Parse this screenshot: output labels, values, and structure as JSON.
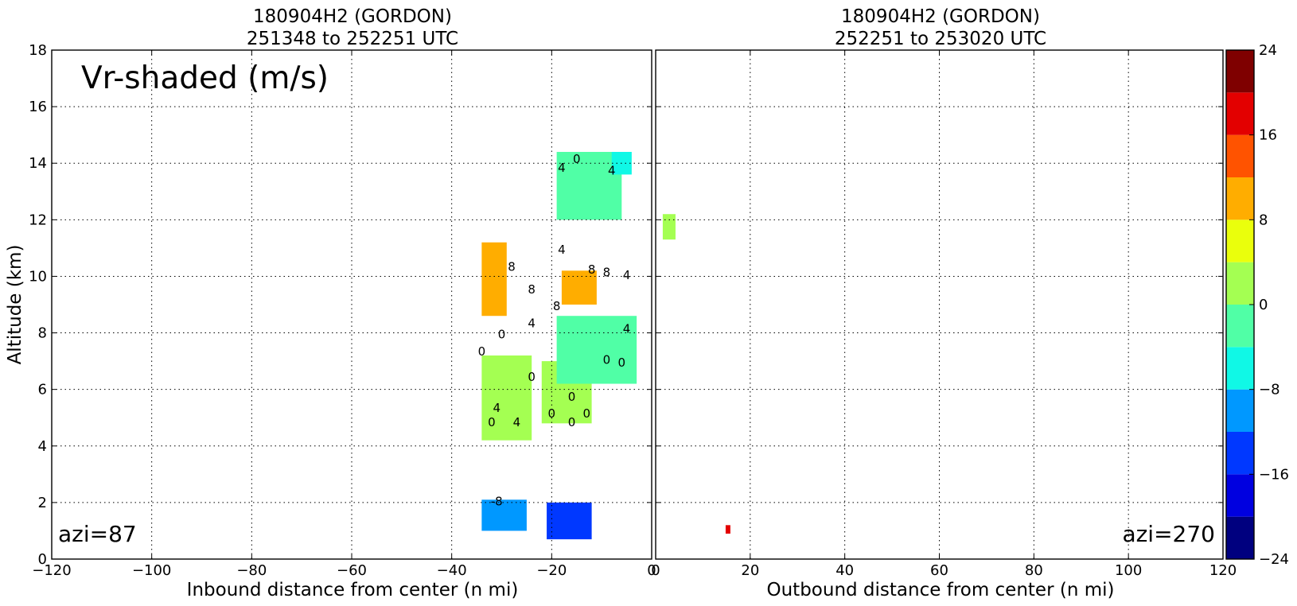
{
  "chart_data": {
    "type": "heatmap",
    "annotation": "Vr-shaded (m/s)",
    "ylabel": "Altitude (km)",
    "ylim": [
      0,
      18
    ],
    "y_ticks": [
      0,
      2,
      4,
      6,
      8,
      10,
      12,
      14,
      16,
      18
    ],
    "grid": true,
    "panels": [
      {
        "title_line1": "180904H2 (GORDON)",
        "title_line2": "251348 to 252251 UTC",
        "xlabel": "Inbound distance from center (n mi)",
        "xlim": [
          -120,
          0
        ],
        "x_ticks": [
          -120,
          -100,
          -80,
          -60,
          -40,
          -20,
          0
        ],
        "azi_label": "azi=87",
        "cells": [
          {
            "x": [
              -34,
              -29
            ],
            "y": [
              8.6,
              11.2
            ],
            "v": 10
          },
          {
            "x": [
              -18,
              -11
            ],
            "y": [
              9.0,
              10.2
            ],
            "v": 10
          },
          {
            "x": [
              -34,
              -24
            ],
            "y": [
              4.2,
              7.2
            ],
            "v": 2
          },
          {
            "x": [
              -22,
              -12
            ],
            "y": [
              4.8,
              7.0
            ],
            "v": 2
          },
          {
            "x": [
              -19,
              -3
            ],
            "y": [
              6.2,
              8.6
            ],
            "v": -2
          },
          {
            "x": [
              -19,
              -6
            ],
            "y": [
              12.0,
              14.4
            ],
            "v": -2
          },
          {
            "x": [
              -8,
              -4
            ],
            "y": [
              13.6,
              14.4
            ],
            "v": -6
          },
          {
            "x": [
              -34,
              -25
            ],
            "y": [
              1.0,
              2.1
            ],
            "v": -10
          },
          {
            "x": [
              -21,
              -12
            ],
            "y": [
              0.7,
              2.0
            ],
            "v": -14
          }
        ],
        "contours": [
          {
            "label": "0",
            "x": -30,
            "y": 7.8
          },
          {
            "label": "0",
            "x": -34,
            "y": 7.2
          },
          {
            "label": "4",
            "x": -24,
            "y": 8.2
          },
          {
            "label": "8",
            "x": -28,
            "y": 10.2
          },
          {
            "label": "8",
            "x": -24,
            "y": 9.4
          },
          {
            "label": "4",
            "x": -18,
            "y": 10.8
          },
          {
            "label": "8",
            "x": -12,
            "y": 10.1
          },
          {
            "label": "8",
            "x": -9,
            "y": 10.0
          },
          {
            "label": "4",
            "x": -5,
            "y": 9.9
          },
          {
            "label": "8",
            "x": -19,
            "y": 8.8
          },
          {
            "label": "4",
            "x": -5,
            "y": 8.0
          },
          {
            "label": "0",
            "x": -9,
            "y": 6.9
          },
          {
            "label": "0",
            "x": -6,
            "y": 6.8
          },
          {
            "label": "0",
            "x": -24,
            "y": 6.3
          },
          {
            "label": "4",
            "x": -31,
            "y": 5.2
          },
          {
            "label": "0",
            "x": -32,
            "y": 4.7
          },
          {
            "label": "4",
            "x": -27,
            "y": 4.7
          },
          {
            "label": "0",
            "x": -20,
            "y": 5.0
          },
          {
            "label": "0",
            "x": -16,
            "y": 5.6
          },
          {
            "label": "0",
            "x": -13,
            "y": 5.0
          },
          {
            "label": "0",
            "x": -16,
            "y": 4.7
          },
          {
            "label": "4",
            "x": -18,
            "y": 13.7
          },
          {
            "label": "0",
            "x": -15,
            "y": 14.0
          },
          {
            "label": "4",
            "x": -8,
            "y": 13.6
          },
          {
            "label": "-8",
            "x": -31,
            "y": 1.9
          }
        ]
      },
      {
        "title_line1": "180904H2 (GORDON)",
        "title_line2": "252251 to 253020 UTC",
        "xlabel": "Outbound distance from center (n mi)",
        "xlim": [
          0,
          120
        ],
        "x_ticks": [
          0,
          20,
          40,
          60,
          80,
          100,
          120
        ],
        "azi_label": "azi=270",
        "cells": [
          {
            "x": [
              1.5,
              4.2
            ],
            "y": [
              11.3,
              12.2
            ],
            "v": 2
          },
          {
            "x": [
              14.8,
              15.8
            ],
            "y": [
              0.9,
              1.2
            ],
            "v": 18
          }
        ],
        "contours": []
      }
    ],
    "colorbar": {
      "levels": [
        -24,
        -20,
        -16,
        -12,
        -8,
        -4,
        0,
        4,
        8,
        12,
        16,
        20,
        24
      ],
      "colors": [
        "#00007f",
        "#0000e0",
        "#0038ff",
        "#0098ff",
        "#10f8e6",
        "#50ffa6",
        "#a4ff52",
        "#eaff0c",
        "#ffad00",
        "#ff5300",
        "#e30000",
        "#7f0000"
      ],
      "tick_labels": [
        "−24",
        "−16",
        "−8",
        "0",
        "8",
        "16",
        "24"
      ]
    }
  }
}
